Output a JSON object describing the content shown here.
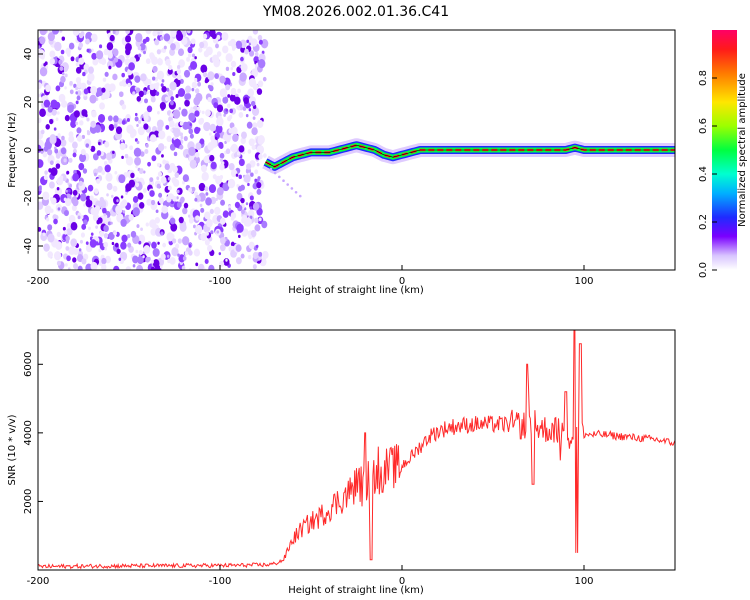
{
  "chart_data": [
    {
      "type": "heatmap",
      "title": "YM08.2026.002.01.36.C41",
      "xlabel": "Height of straight line (km)",
      "ylabel": "Frequency (Hz)",
      "xlim": [
        -200,
        150
      ],
      "ylim": [
        -50,
        50
      ],
      "xticks": [
        -200,
        -100,
        0,
        100
      ],
      "yticks": [
        40,
        20,
        0,
        -20,
        -40
      ],
      "noise_region_x": [
        -200,
        -75
      ],
      "ridge": {
        "x": [
          -75,
          -70,
          -65,
          -60,
          -55,
          -50,
          -45,
          -40,
          -35,
          -30,
          -25,
          -20,
          -15,
          -10,
          -5,
          0,
          5,
          10,
          20,
          40,
          60,
          80,
          90,
          95,
          100,
          120,
          150
        ],
        "freq": [
          -5,
          -7,
          -5,
          -3,
          -2,
          -1,
          -1,
          -1,
          0,
          1,
          2,
          1,
          0,
          -2,
          -3,
          -2,
          -1,
          0,
          0,
          0,
          0,
          0,
          0,
          1,
          0,
          0,
          0
        ]
      },
      "colorbar": {
        "label": "Normalized spectral amplitude",
        "range": [
          0,
          1
        ],
        "ticks": [
          "0.0",
          "0.2",
          "0.4",
          "0.6",
          "0.8"
        ],
        "ticklabels": [
          "0.0",
          "0.2",
          "0.4",
          "0.6",
          "0.8"
        ]
      }
    },
    {
      "type": "line",
      "xlabel": "Height of straight line (km)",
      "ylabel": "SNR (10 * v/v)",
      "xlim": [
        -200,
        150
      ],
      "ylim": [
        0,
        7000
      ],
      "xticks": [
        -200,
        -100,
        0,
        100
      ],
      "yticks": [
        2000,
        4000,
        6000
      ],
      "color": "#ff2a2a",
      "envelope": {
        "x": [
          -200,
          -150,
          -100,
          -75,
          -70,
          -65,
          -60,
          -55,
          -50,
          -45,
          -40,
          -30,
          -25,
          -20,
          -15,
          -10,
          -5,
          0,
          5,
          10,
          15,
          20,
          25,
          30,
          40,
          50,
          60,
          70,
          80,
          90,
          100,
          110,
          120,
          130,
          140,
          150
        ],
        "snr": [
          100,
          120,
          130,
          150,
          180,
          300,
          900,
          1200,
          1400,
          1550,
          1800,
          2200,
          2500,
          2600,
          2800,
          2900,
          3000,
          3050,
          3300,
          3600,
          3900,
          4050,
          4150,
          4200,
          4250,
          4250,
          4250,
          4200,
          4100,
          4050,
          3950,
          3950,
          3900,
          3850,
          3800,
          3700
        ]
      },
      "spikes": [
        {
          "x": -20,
          "snr": 4000
        },
        {
          "x": -17,
          "snr": 300
        },
        {
          "x": 69,
          "snr": 6000
        },
        {
          "x": 72,
          "snr": 2500
        },
        {
          "x": 95,
          "snr": 7000
        },
        {
          "x": 96,
          "snr": 500
        },
        {
          "x": 98,
          "snr": 6600
        },
        {
          "x": 90,
          "snr": 5200
        }
      ]
    }
  ]
}
